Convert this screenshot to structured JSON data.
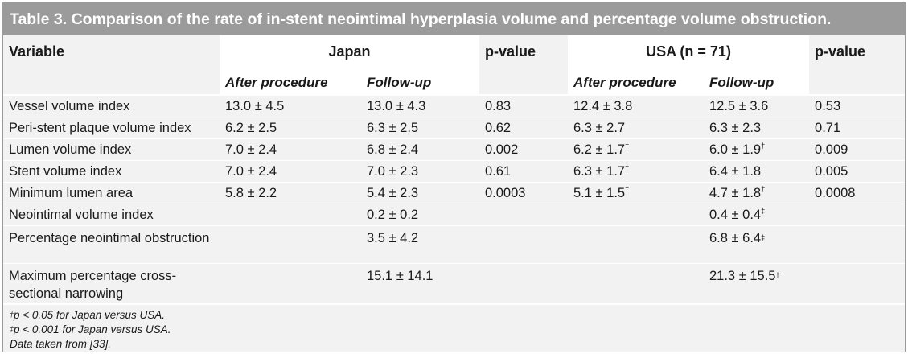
{
  "title": "Table 3. Comparison of the rate of in-stent neointimal hyperplasia volume and percentage volume obstruction.",
  "header": {
    "variable": "Variable",
    "group1": "Japan",
    "pvalue1": "p-value",
    "group2": "USA (n = 71)",
    "pvalue2": "p-value",
    "sub": [
      "After procedure",
      "Follow-up",
      "After procedure",
      "Follow-up"
    ]
  },
  "rows": [
    {
      "variable": "Vessel volume index",
      "jp_after": "13.0 ± 4.5",
      "jp_follow": "13.0 ± 4.3",
      "p1": "0.83",
      "us_after": "12.4 ± 3.8",
      "us_after_mark": "",
      "us_follow": "12.5 ± 3.6",
      "us_follow_mark": "",
      "p2": "0.53"
    },
    {
      "variable": "Peri-stent plaque volume index",
      "jp_after": "6.2 ± 2.5",
      "jp_follow": "6.3 ± 2.5",
      "p1": "0.62",
      "us_after": "6.3 ± 2.7",
      "us_after_mark": "",
      "us_follow": "6.3 ± 2.3",
      "us_follow_mark": "",
      "p2": "0.71"
    },
    {
      "variable": "Lumen volume index",
      "jp_after": "7.0 ± 2.4",
      "jp_follow": "6.8 ± 2.4",
      "p1": "0.002",
      "us_after": "6.2 ± 1.7",
      "us_after_mark": "†",
      "us_follow": "6.0 ± 1.9",
      "us_follow_mark": "†",
      "p2": "0.009"
    },
    {
      "variable": "Stent volume index",
      "jp_after": "7.0 ± 2.4",
      "jp_follow": "7.0 ± 2.3",
      "p1": "0.61",
      "us_after": "6.3 ± 1.7",
      "us_after_mark": "†",
      "us_follow": "6.4 ± 1.8",
      "us_follow_mark": "",
      "p2": "0.005"
    },
    {
      "variable": "Minimum lumen area",
      "jp_after": "5.8 ± 2.2",
      "jp_follow": "5.4 ± 2.3",
      "p1": "0.0003",
      "us_after": "5.1 ± 1.5",
      "us_after_mark": "†",
      "us_follow": "4.7 ± 1.8",
      "us_follow_mark": "†",
      "p2": "0.0008"
    },
    {
      "variable": "Neointimal volume index",
      "jp_after": "",
      "jp_follow": "0.2 ± 0.2",
      "p1": "",
      "us_after": "",
      "us_after_mark": "",
      "us_follow": "0.4 ± 0.4",
      "us_follow_mark": "‡",
      "p2": ""
    },
    {
      "variable": "Percentage neointimal obstruction",
      "jp_after": "",
      "jp_follow": "3.5 ± 4.2",
      "p1": "",
      "us_after": "",
      "us_after_mark": "",
      "us_follow": "6.8 ± 6.4",
      "us_follow_mark": "‡",
      "p2": ""
    },
    {
      "variable": "Maximum percentage cross-sectional narrowing",
      "jp_after": "",
      "jp_follow": "15.1 ± 14.1",
      "p1": "",
      "us_after": "",
      "us_after_mark": "",
      "us_follow": "21.3 ± 15.5",
      "us_follow_mark": "†",
      "p2": ""
    }
  ],
  "footnotes": [
    {
      "mark": "†",
      "text": "p < 0.05 for Japan versus USA."
    },
    {
      "mark": "‡",
      "text": "p < 0.001 for Japan versus USA."
    },
    {
      "mark": "",
      "text": "Data taken from [33]."
    }
  ]
}
